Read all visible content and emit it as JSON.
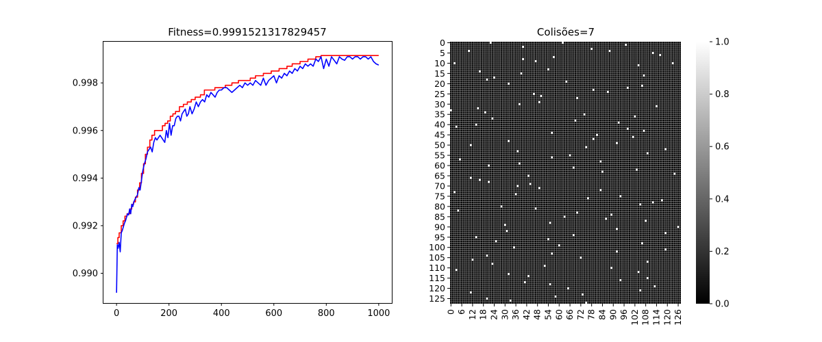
{
  "chart_data": [
    {
      "type": "line",
      "title": "Fitness=0.9991521317829457",
      "xlabel": "",
      "ylabel": "",
      "xlim": [
        -50,
        1050
      ],
      "ylim": [
        0.98875,
        0.99973
      ],
      "xticks": [
        0,
        200,
        400,
        600,
        800,
        1000
      ],
      "yticks": [
        0.99,
        0.992,
        0.994,
        0.996,
        0.998
      ],
      "ytick_labels": [
        "0.990",
        "0.992",
        "0.994",
        "0.996",
        "0.998"
      ],
      "grid": false,
      "series": [
        {
          "color": "#ff0000",
          "style": "step",
          "x": [
            0,
            5,
            10,
            18,
            25,
            32,
            40,
            50,
            58,
            65,
            72,
            80,
            88,
            95,
            103,
            110,
            118,
            127,
            135,
            145,
            155,
            165,
            175,
            185,
            195,
            205,
            215,
            225,
            240,
            255,
            270,
            285,
            300,
            320,
            335,
            355,
            375,
            395,
            415,
            440,
            465,
            485,
            510,
            530,
            560,
            590,
            620,
            650,
            670,
            700,
            730,
            760,
            780,
            800,
            1000
          ],
          "y": [
            0.99125,
            0.9915,
            0.9917,
            0.992,
            0.9922,
            0.9924,
            0.9925,
            0.9927,
            0.9929,
            0.993,
            0.9932,
            0.9935,
            0.9938,
            0.9942,
            0.9946,
            0.995,
            0.9953,
            0.9956,
            0.9958,
            0.996,
            0.996,
            0.996,
            0.9962,
            0.9963,
            0.9964,
            0.9966,
            0.9967,
            0.9968,
            0.997,
            0.9971,
            0.9972,
            0.9973,
            0.9974,
            0.9975,
            0.9977,
            0.9977,
            0.9978,
            0.9978,
            0.9979,
            0.998,
            0.9981,
            0.9981,
            0.9982,
            0.9983,
            0.9984,
            0.9985,
            0.9986,
            0.9987,
            0.9988,
            0.9989,
            0.999,
            0.9991,
            0.99915,
            0.99915,
            0.99915
          ]
        },
        {
          "color": "#0000ff",
          "style": "line",
          "x": [
            0,
            3,
            6,
            10,
            14,
            18,
            22,
            26,
            30,
            34,
            38,
            42,
            46,
            50,
            54,
            58,
            62,
            66,
            70,
            75,
            80,
            85,
            90,
            95,
            100,
            106,
            112,
            118,
            124,
            130,
            136,
            142,
            148,
            154,
            160,
            166,
            172,
            178,
            184,
            190,
            196,
            202,
            208,
            214,
            220,
            226,
            232,
            238,
            244,
            250,
            256,
            262,
            268,
            274,
            280,
            288,
            296,
            304,
            312,
            320,
            328,
            336,
            344,
            352,
            360,
            368,
            376,
            384,
            392,
            400,
            410,
            420,
            430,
            440,
            450,
            460,
            470,
            480,
            490,
            500,
            510,
            520,
            530,
            540,
            550,
            560,
            570,
            580,
            590,
            600,
            610,
            620,
            630,
            640,
            650,
            660,
            670,
            680,
            690,
            700,
            710,
            720,
            730,
            740,
            750,
            760,
            770,
            780,
            790,
            800,
            810,
            820,
            830,
            840,
            850,
            860,
            870,
            880,
            890,
            900,
            910,
            920,
            930,
            940,
            950,
            960,
            970,
            980,
            990,
            1000
          ],
          "y": [
            0.98918,
            0.9912,
            0.99105,
            0.9913,
            0.9909,
            0.9917,
            0.9918,
            0.99195,
            0.9921,
            0.9922,
            0.99235,
            0.9925,
            0.99245,
            0.9927,
            0.9925,
            0.9929,
            0.9928,
            0.993,
            0.9931,
            0.9932,
            0.9933,
            0.9936,
            0.9935,
            0.9939,
            0.9943,
            0.9946,
            0.9948,
            0.9951,
            0.9952,
            0.9953,
            0.9951,
            0.9955,
            0.9957,
            0.9956,
            0.9957,
            0.9958,
            0.9957,
            0.9956,
            0.9955,
            0.996,
            0.9957,
            0.9963,
            0.9958,
            0.9962,
            0.9962,
            0.9965,
            0.9966,
            0.9966,
            0.9964,
            0.9967,
            0.9968,
            0.9969,
            0.9966,
            0.9967,
            0.997,
            0.9967,
            0.9969,
            0.9972,
            0.997,
            0.9972,
            0.9973,
            0.9972,
            0.9975,
            0.9974,
            0.9976,
            0.9975,
            0.9974,
            0.9976,
            0.9977,
            0.9977,
            0.9978,
            0.9978,
            0.9977,
            0.9976,
            0.9977,
            0.9978,
            0.9979,
            0.9978,
            0.998,
            0.9979,
            0.998,
            0.9979,
            0.9981,
            0.998,
            0.9979,
            0.9982,
            0.9979,
            0.9981,
            0.9982,
            0.9983,
            0.998,
            0.9983,
            0.9982,
            0.9984,
            0.9983,
            0.9985,
            0.9984,
            0.9986,
            0.9985,
            0.9987,
            0.9986,
            0.9988,
            0.9987,
            0.9988,
            0.9987,
            0.999,
            0.9989,
            0.9991,
            0.9986,
            0.999,
            0.9987,
            0.9991,
            0.99895,
            0.9988,
            0.9991,
            0.999,
            0.99895,
            0.9991,
            0.9991,
            0.999,
            0.9991,
            0.9991,
            0.999,
            0.9991,
            0.9991,
            0.999,
            0.9991,
            0.9989,
            0.9988,
            0.99875
          ]
        }
      ]
    },
    {
      "type": "heatmap",
      "title": "Colisões=7",
      "size": 128,
      "colormap": "gray",
      "background_value": 0,
      "marker_value": 1,
      "grid_line_color": "#b8b8b8",
      "xtick_step": 6,
      "ytick_step": 5,
      "colorbar": {
        "min": 0.0,
        "max": 1.0,
        "ticks": [
          0.0,
          0.2,
          0.4,
          0.6,
          0.8,
          1.0
        ],
        "tick_labels": [
          "0.0",
          "0.2",
          "0.4",
          "0.6",
          "0.8",
          "1.0"
        ]
      },
      "ones": [
        [
          0,
          22
        ],
        [
          0,
          62
        ],
        [
          1,
          97
        ],
        [
          2,
          40
        ],
        [
          3,
          78
        ],
        [
          4,
          10
        ],
        [
          4,
          88
        ],
        [
          5,
          112
        ],
        [
          6,
          116
        ],
        [
          7,
          57
        ],
        [
          8,
          40
        ],
        [
          9,
          47
        ],
        [
          10,
          2
        ],
        [
          10,
          123
        ],
        [
          11,
          104
        ],
        [
          13,
          54
        ],
        [
          14,
          16
        ],
        [
          15,
          39
        ],
        [
          16,
          107
        ],
        [
          17,
          24
        ],
        [
          18,
          20
        ],
        [
          19,
          64
        ],
        [
          20,
          32
        ],
        [
          21,
          106
        ],
        [
          22,
          98
        ],
        [
          23,
          79
        ],
        [
          24,
          87
        ],
        [
          25,
          46
        ],
        [
          26,
          50
        ],
        [
          27,
          70
        ],
        [
          29,
          49
        ],
        [
          30,
          38
        ],
        [
          31,
          114
        ],
        [
          32,
          15
        ],
        [
          33,
          0
        ],
        [
          34,
          19
        ],
        [
          35,
          74
        ],
        [
          36,
          102
        ],
        [
          37,
          23
        ],
        [
          38,
          69
        ],
        [
          39,
          93
        ],
        [
          40,
          14
        ],
        [
          41,
          3
        ],
        [
          42,
          98
        ],
        [
          43,
          107
        ],
        [
          44,
          56
        ],
        [
          45,
          81
        ],
        [
          46,
          101
        ],
        [
          47,
          79
        ],
        [
          48,
          32
        ],
        [
          49,
          92
        ],
        [
          50,
          11
        ],
        [
          51,
          75
        ],
        [
          52,
          119
        ],
        [
          53,
          37
        ],
        [
          54,
          109
        ],
        [
          55,
          66
        ],
        [
          56,
          56
        ],
        [
          57,
          5
        ],
        [
          58,
          83
        ],
        [
          59,
          38
        ],
        [
          60,
          21
        ],
        [
          61,
          68
        ],
        [
          62,
          103
        ],
        [
          63,
          84
        ],
        [
          64,
          124
        ],
        [
          65,
          43
        ],
        [
          66,
          11
        ],
        [
          67,
          16
        ],
        [
          68,
          21
        ],
        [
          69,
          44
        ],
        [
          70,
          37
        ],
        [
          71,
          49
        ],
        [
          72,
          83
        ],
        [
          73,
          2
        ],
        [
          74,
          36
        ],
        [
          75,
          94
        ],
        [
          76,
          76
        ],
        [
          77,
          117
        ],
        [
          78,
          112
        ],
        [
          79,
          105
        ],
        [
          80,
          28
        ],
        [
          81,
          47
        ],
        [
          82,
          4
        ],
        [
          83,
          70
        ],
        [
          84,
          89
        ],
        [
          85,
          63
        ],
        [
          86,
          86
        ],
        [
          87,
          108
        ],
        [
          88,
          55
        ],
        [
          89,
          30
        ],
        [
          90,
          126
        ],
        [
          91,
          92
        ],
        [
          92,
          31
        ],
        [
          93,
          119
        ],
        [
          94,
          68
        ],
        [
          95,
          14
        ],
        [
          96,
          54
        ],
        [
          97,
          25
        ],
        [
          98,
          106
        ],
        [
          99,
          60
        ],
        [
          100,
          35
        ],
        [
          101,
          119
        ],
        [
          102,
          92
        ],
        [
          103,
          56
        ],
        [
          104,
          20
        ],
        [
          105,
          72
        ],
        [
          106,
          12
        ],
        [
          107,
          109
        ],
        [
          108,
          23
        ],
        [
          109,
          52
        ],
        [
          110,
          89
        ],
        [
          111,
          3
        ],
        [
          112,
          104
        ],
        [
          113,
          32
        ],
        [
          114,
          43
        ],
        [
          115,
          109
        ],
        [
          116,
          94
        ],
        [
          117,
          41
        ],
        [
          118,
          55
        ],
        [
          119,
          113
        ],
        [
          120,
          65
        ],
        [
          121,
          105
        ],
        [
          122,
          11
        ],
        [
          123,
          73
        ],
        [
          124,
          58
        ],
        [
          125,
          20
        ],
        [
          126,
          33
        ],
        [
          127,
          75
        ]
      ]
    }
  ]
}
